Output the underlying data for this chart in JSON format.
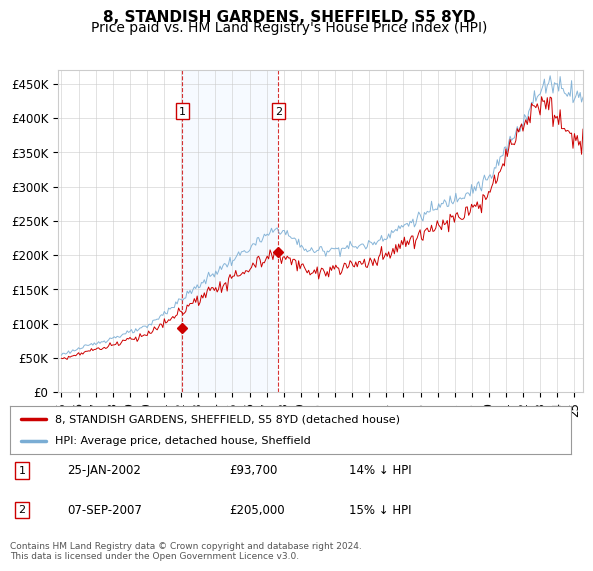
{
  "title": "8, STANDISH GARDENS, SHEFFIELD, S5 8YD",
  "subtitle": "Price paid vs. HM Land Registry's House Price Index (HPI)",
  "ylabel_ticks": [
    "£0",
    "£50K",
    "£100K",
    "£150K",
    "£200K",
    "£250K",
    "£300K",
    "£350K",
    "£400K",
    "£450K"
  ],
  "ytick_values": [
    0,
    50000,
    100000,
    150000,
    200000,
    250000,
    300000,
    350000,
    400000,
    450000
  ],
  "ylim": [
    0,
    470000
  ],
  "xlim_start": 1995.0,
  "xlim_end": 2025.5,
  "legend_line1": "8, STANDISH GARDENS, SHEFFIELD, S5 8YD (detached house)",
  "legend_line2": "HPI: Average price, detached house, Sheffield",
  "transaction1_date": "25-JAN-2002",
  "transaction1_price": "£93,700",
  "transaction1_hpi": "14% ↓ HPI",
  "transaction1_year": 2002.07,
  "transaction1_value": 93700,
  "transaction2_date": "07-SEP-2007",
  "transaction2_price": "£205,000",
  "transaction2_hpi": "15% ↓ HPI",
  "transaction2_year": 2007.69,
  "transaction2_value": 205000,
  "hpi_color": "#7aadd4",
  "price_color": "#cc0000",
  "shade_color": "#ddeeff",
  "vline_color": "#cc0000",
  "grid_color": "#cccccc",
  "footer_text": "Contains HM Land Registry data © Crown copyright and database right 2024.\nThis data is licensed under the Open Government Licence v3.0.",
  "background_color": "#ffffff",
  "title_fontsize": 11,
  "subtitle_fontsize": 10,
  "tick_fontsize": 8.5
}
